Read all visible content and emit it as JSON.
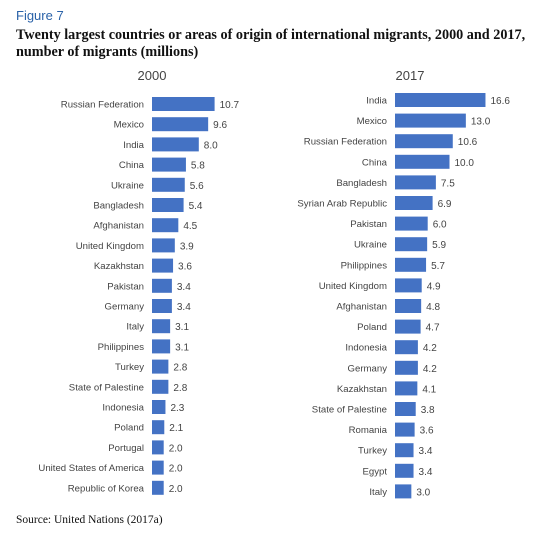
{
  "figure_label": "Figure 7",
  "title": "Twenty largest countries or areas of origin of international migrants, 2000 and 2017, number of migrants (millions)",
  "source": "Source: United Nations (2017a)",
  "colors": {
    "bar": "#4472c4"
  },
  "chart_data": [
    {
      "type": "bar",
      "orientation": "horizontal",
      "title": "2000",
      "categories": [
        "Russian Federation",
        "Mexico",
        "India",
        "China",
        "Ukraine",
        "Bangladesh",
        "Afghanistan",
        "United Kingdom",
        "Kazakhstan",
        "Pakistan",
        "Germany",
        "Italy",
        "Philippines",
        "Turkey",
        "State of Palestine",
        "Indonesia",
        "Poland",
        "Portugal",
        "United States of America",
        "Republic of Korea"
      ],
      "values": [
        10.7,
        9.6,
        8.0,
        5.8,
        5.6,
        5.4,
        4.5,
        3.9,
        3.6,
        3.4,
        3.4,
        3.1,
        3.1,
        2.8,
        2.8,
        2.3,
        2.1,
        2.0,
        2.0,
        2.0
      ],
      "value_labels": [
        "10.7",
        "9.6",
        "8.0",
        "5.8",
        "5.6",
        "5.4",
        "4.5",
        "3.9",
        "3.6",
        "3.4",
        "3.4",
        "3.1",
        "3.1",
        "2.8",
        "2.8",
        "2.3",
        "2.1",
        "2.0",
        "2.0",
        "2.0"
      ]
    },
    {
      "type": "bar",
      "orientation": "horizontal",
      "title": "2017",
      "categories": [
        "India",
        "Mexico",
        "Russian Federation",
        "China",
        "Bangladesh",
        "Syrian Arab Republic",
        "Pakistan",
        "Ukraine",
        "Philippines",
        "United Kingdom",
        "Afghanistan",
        "Poland",
        "Indonesia",
        "Germany",
        "Kazakhstan",
        "State of Palestine",
        "Romania",
        "Turkey",
        "Egypt",
        "Italy"
      ],
      "values": [
        16.6,
        13.0,
        10.6,
        10.0,
        7.5,
        6.9,
        6.0,
        5.9,
        5.7,
        4.9,
        4.8,
        4.7,
        4.2,
        4.2,
        4.1,
        3.8,
        3.6,
        3.4,
        3.4,
        3.0
      ],
      "value_labels": [
        "16.6",
        "13.0",
        "10.6",
        "10.0",
        "7.5",
        "6.9",
        "6.0",
        "5.9",
        "5.7",
        "4.9",
        "4.8",
        "4.7",
        "4.2",
        "4.2",
        "4.1",
        "3.8",
        "3.6",
        "3.4",
        "3.4",
        "3.0"
      ]
    }
  ]
}
